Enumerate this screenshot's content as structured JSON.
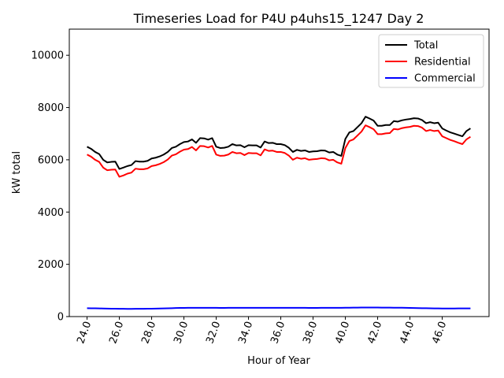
{
  "chart_data": {
    "type": "line",
    "title": "Timeseries Load for P4U p4uhs15_1247  Day 2",
    "xlabel": "Hour of Year",
    "ylabel": "kW total",
    "xlim": [
      22.9,
      48.9
    ],
    "ylim": [
      0,
      11000
    ],
    "x_ticks": [
      24,
      26,
      28,
      30,
      32,
      34,
      36,
      38,
      40,
      42,
      44,
      46
    ],
    "x_tick_labels": [
      "24.0",
      "26.0",
      "28.0",
      "30.0",
      "32.0",
      "34.0",
      "36.0",
      "38.0",
      "40.0",
      "42.0",
      "44.0",
      "46.0"
    ],
    "y_ticks": [
      0,
      2000,
      4000,
      6000,
      8000,
      10000
    ],
    "y_tick_labels": [
      "0",
      "2000",
      "4000",
      "6000",
      "8000",
      "10000"
    ],
    "grid": false,
    "legend_position": "top-right",
    "x": [
      24.0,
      24.25,
      24.5,
      24.75,
      25.0,
      25.25,
      25.5,
      25.75,
      26.0,
      26.25,
      26.5,
      26.75,
      27.0,
      27.25,
      27.5,
      27.75,
      28.0,
      28.25,
      28.5,
      28.75,
      29.0,
      29.25,
      29.5,
      29.75,
      30.0,
      30.25,
      30.5,
      30.75,
      31.0,
      31.25,
      31.5,
      31.75,
      32.0,
      32.25,
      32.5,
      32.75,
      33.0,
      33.25,
      33.5,
      33.75,
      34.0,
      34.25,
      34.5,
      34.75,
      35.0,
      35.25,
      35.5,
      35.75,
      36.0,
      36.25,
      36.5,
      36.75,
      37.0,
      37.25,
      37.5,
      37.75,
      38.0,
      38.25,
      38.5,
      38.75,
      39.0,
      39.25,
      39.5,
      39.75,
      40.0,
      40.25,
      40.5,
      40.75,
      41.0,
      41.25,
      41.5,
      41.75,
      42.0,
      42.25,
      42.5,
      42.75,
      43.0,
      43.25,
      43.5,
      43.75,
      44.0,
      44.25,
      44.5,
      44.75,
      45.0,
      45.25,
      45.5,
      45.75,
      46.0,
      46.25,
      46.5,
      46.75,
      47.0,
      47.25,
      47.5,
      47.75
    ],
    "series": [
      {
        "name": "Total",
        "color": "#000000",
        "values": [
          6500,
          6420,
          6300,
          6220,
          6000,
          5900,
          5920,
          5930,
          5650,
          5700,
          5760,
          5800,
          5950,
          5930,
          5930,
          5960,
          6050,
          6080,
          6130,
          6200,
          6300,
          6450,
          6500,
          6600,
          6680,
          6700,
          6780,
          6650,
          6830,
          6820,
          6770,
          6830,
          6500,
          6450,
          6460,
          6500,
          6600,
          6550,
          6560,
          6480,
          6560,
          6550,
          6550,
          6470,
          6700,
          6640,
          6650,
          6600,
          6600,
          6560,
          6460,
          6300,
          6380,
          6340,
          6360,
          6300,
          6320,
          6330,
          6360,
          6350,
          6280,
          6300,
          6200,
          6150,
          6800,
          7050,
          7100,
          7250,
          7400,
          7650,
          7580,
          7500,
          7300,
          7300,
          7330,
          7330,
          7480,
          7460,
          7510,
          7540,
          7560,
          7590,
          7580,
          7520,
          7400,
          7440,
          7400,
          7420,
          7200,
          7120,
          7050,
          7000,
          6950,
          6900,
          7100,
          7200
        ]
      },
      {
        "name": "Residential",
        "color": "#ff0000",
        "values": [
          6200,
          6120,
          6000,
          5920,
          5700,
          5600,
          5620,
          5630,
          5350,
          5400,
          5470,
          5510,
          5660,
          5640,
          5640,
          5670,
          5760,
          5790,
          5840,
          5910,
          6010,
          6160,
          6210,
          6310,
          6390,
          6410,
          6490,
          6360,
          6530,
          6520,
          6470,
          6530,
          6200,
          6150,
          6160,
          6200,
          6300,
          6250,
          6260,
          6180,
          6260,
          6250,
          6250,
          6170,
          6400,
          6340,
          6350,
          6300,
          6300,
          6260,
          6160,
          6000,
          6080,
          6040,
          6060,
          6000,
          6020,
          6030,
          6060,
          6050,
          5980,
          6000,
          5900,
          5850,
          6450,
          6720,
          6780,
          6930,
          7080,
          7320,
          7250,
          7170,
          6980,
          6980,
          7010,
          7020,
          7180,
          7160,
          7210,
          7240,
          7260,
          7300,
          7290,
          7230,
          7100,
          7140,
          7100,
          7120,
          6900,
          6830,
          6760,
          6710,
          6650,
          6600,
          6780,
          6880
        ]
      },
      {
        "name": "Commercial",
        "color": "#0000ff",
        "values": [
          320,
          318,
          315,
          312,
          308,
          305,
          302,
          300,
          298,
          296,
          295,
          295,
          296,
          297,
          298,
          300,
          302,
          305,
          308,
          312,
          318,
          322,
          326,
          330,
          333,
          335,
          336,
          336,
          336,
          335,
          334,
          334,
          334,
          333,
          333,
          334,
          334,
          335,
          335,
          335,
          336,
          336,
          336,
          336,
          336,
          336,
          336,
          335,
          335,
          335,
          335,
          334,
          334,
          334,
          334,
          333,
          333,
          333,
          334,
          334,
          335,
          335,
          336,
          337,
          338,
          340,
          342,
          344,
          346,
          347,
          347,
          346,
          345,
          344,
          343,
          342,
          341,
          340,
          338,
          335,
          332,
          328,
          325,
          322,
          320,
          317,
          314,
          312,
          310,
          309,
          309,
          310,
          311,
          312,
          313,
          314
        ]
      }
    ]
  }
}
